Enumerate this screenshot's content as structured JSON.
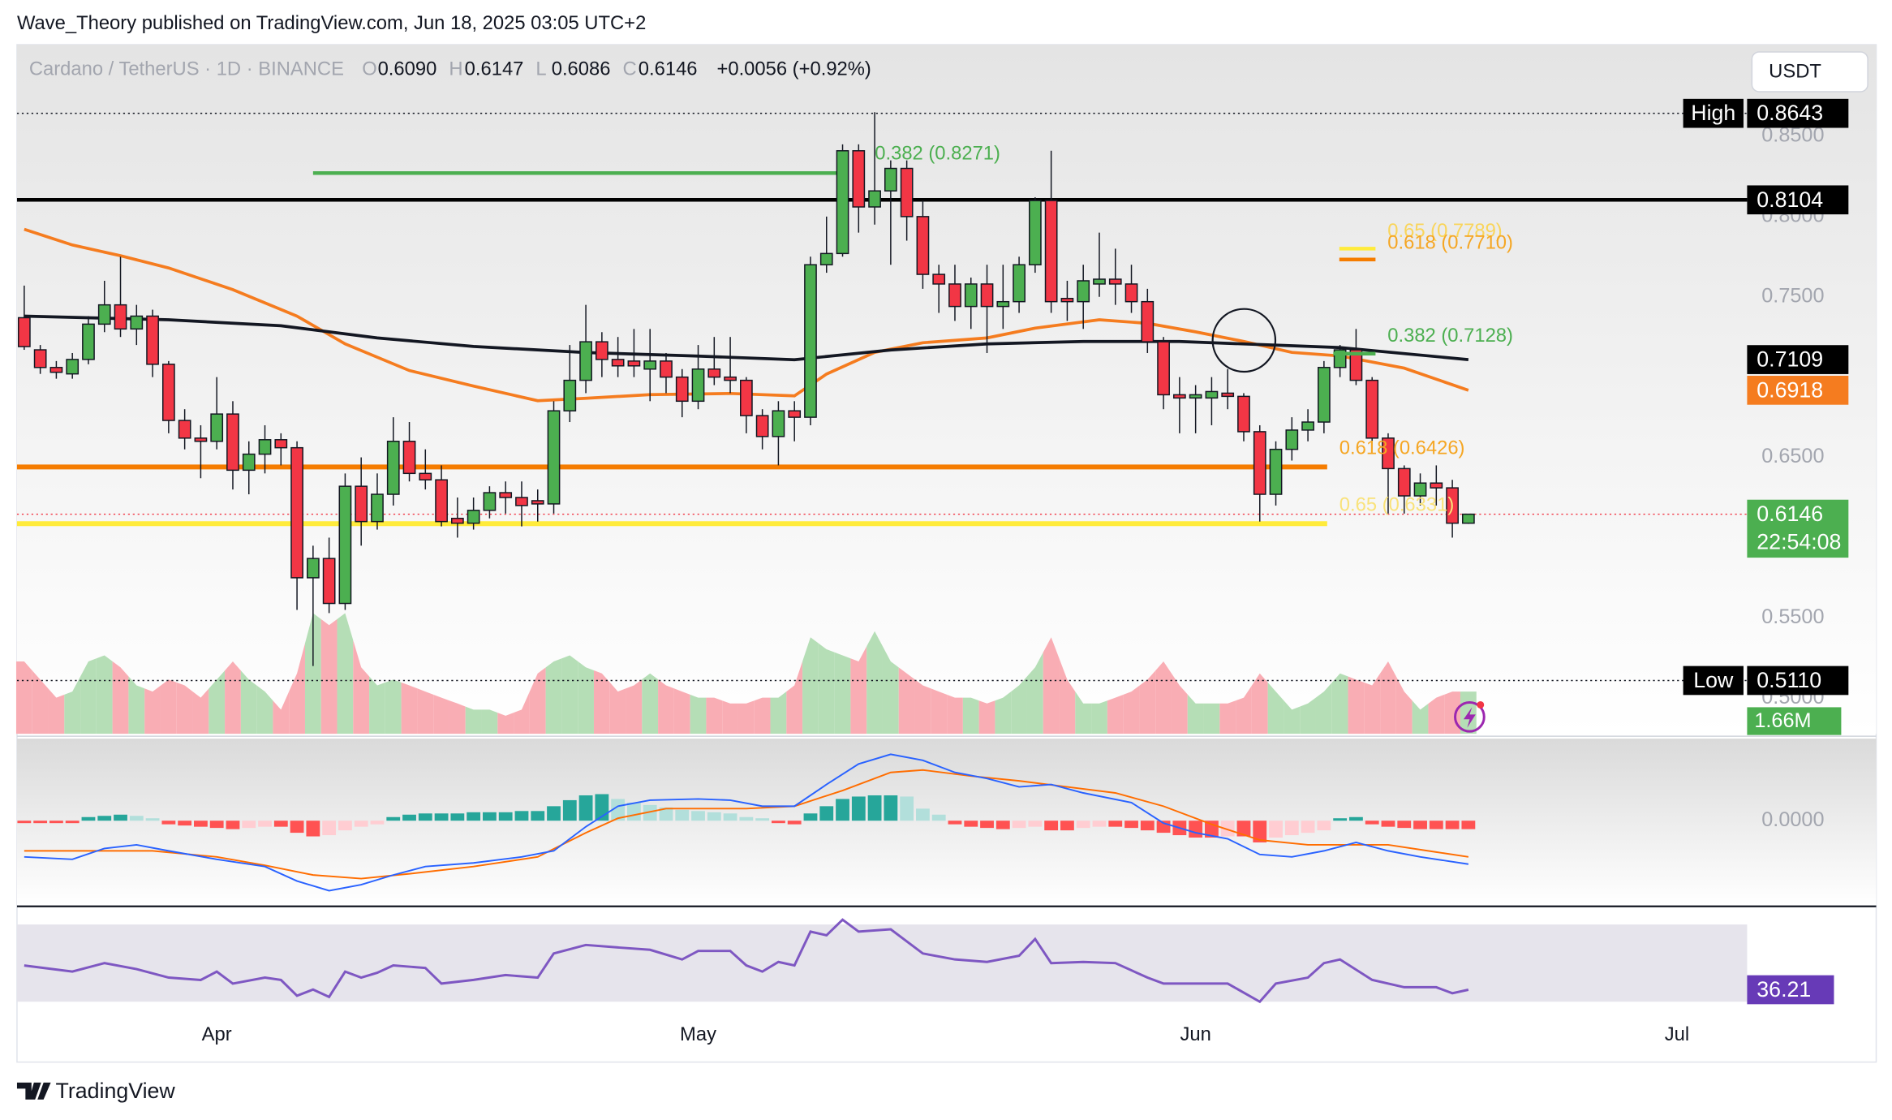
{
  "header": {
    "publisher": "Wave_Theory published on TradingView.com, Jun 18, 2025 03:05 UTC+2"
  },
  "currency_button": "USDT",
  "footer": {
    "brand": "TradingView"
  },
  "chart_data": [
    {
      "type": "candlestick",
      "title": "Cardano / TetherUS · 1D · BINANCE",
      "legend": [
        {
          "key": "O",
          "value": {
            "value": 0.609,
            "label": "0.6090"
          }
        },
        {
          "key": "H",
          "value": 0.6147
        },
        {
          "key": "L",
          "value": 0.6086
        },
        {
          "key": "C",
          "value": 0.6146
        }
      ],
      "change": {
        "value": 0.0056,
        "label": "+0.0056 (+0.92%)"
      },
      "xlim": [
        -0.45,
        107.37
      ],
      "xticks": [
        {
          "value": 12,
          "label": "Apr"
        },
        {
          "value": 42,
          "label": "May"
        },
        {
          "value": 73,
          "label": "Jun"
        },
        {
          "value": 103,
          "label": "Jul"
        }
      ],
      "ylim": [
        0.4778,
        0.9071
      ],
      "yticks": [
        {
          "value": 0.85,
          "label": "0.8500"
        },
        {
          "value": 0.8,
          "label": "0.8000"
        },
        {
          "value": 0.75,
          "label": "0.7500"
        },
        {
          "value": 0.65,
          "label": "0.6500"
        },
        {
          "value": 0.55,
          "label": "0.5500"
        },
        {
          "value": 0.5,
          "label": "0.5000"
        }
      ],
      "up_color": "#4caf50",
      "down_color": "#f23645",
      "open": [
        0.737,
        0.717,
        0.706,
        0.702,
        0.711,
        0.733,
        0.745,
        0.73,
        0.738,
        0.708,
        0.673,
        0.662,
        0.66,
        0.677,
        0.642,
        0.652,
        0.661,
        0.656,
        0.575,
        0.587,
        0.559,
        0.632,
        0.61,
        0.627,
        0.66,
        0.64,
        0.636,
        0.612,
        0.609,
        0.617,
        0.628,
        0.625,
        0.623,
        0.621,
        0.679,
        0.698,
        0.722,
        0.711,
        0.71,
        0.705,
        0.71,
        0.7,
        0.685,
        0.705,
        0.7,
        0.698,
        0.676,
        0.663,
        0.679,
        0.675,
        0.77,
        0.777,
        0.841,
        0.806,
        0.816,
        0.83,
        0.8,
        0.764,
        0.758,
        0.744,
        0.758,
        0.744,
        0.747,
        0.77,
        0.81,
        0.749,
        0.747,
        0.758,
        0.761,
        0.758,
        0.747,
        0.722,
        0.689,
        0.687,
        0.687,
        0.69,
        0.688,
        0.666,
        0.627,
        0.655,
        0.667,
        0.672,
        0.706,
        0.717,
        0.698,
        0.662,
        0.643,
        0.626,
        0.634,
        0.631,
        0.609
      ],
      "high": [
        0.757,
        0.72,
        0.71,
        0.715,
        0.738,
        0.76,
        0.775,
        0.745,
        0.742,
        0.71,
        0.68,
        0.67,
        0.7,
        0.685,
        0.66,
        0.67,
        0.665,
        0.66,
        0.595,
        0.6,
        0.64,
        0.65,
        0.64,
        0.675,
        0.672,
        0.655,
        0.645,
        0.625,
        0.625,
        0.632,
        0.635,
        0.635,
        0.63,
        0.685,
        0.72,
        0.745,
        0.728,
        0.725,
        0.73,
        0.73,
        0.715,
        0.705,
        0.72,
        0.725,
        0.725,
        0.7,
        0.68,
        0.685,
        0.685,
        0.775,
        0.8,
        0.845,
        0.845,
        0.865,
        0.835,
        0.835,
        0.81,
        0.77,
        0.77,
        0.762,
        0.77,
        0.77,
        0.775,
        0.812,
        0.841,
        0.76,
        0.77,
        0.79,
        0.78,
        0.77,
        0.755,
        0.725,
        0.7,
        0.695,
        0.7,
        0.705,
        0.69,
        0.67,
        0.66,
        0.675,
        0.68,
        0.71,
        0.72,
        0.73,
        0.7,
        0.665,
        0.645,
        0.64,
        0.645,
        0.636,
        0.6147
      ],
      "low": [
        0.717,
        0.702,
        0.699,
        0.699,
        0.708,
        0.728,
        0.725,
        0.72,
        0.7,
        0.665,
        0.655,
        0.637,
        0.655,
        0.63,
        0.627,
        0.64,
        0.645,
        0.555,
        0.52,
        0.553,
        0.555,
        0.595,
        0.605,
        0.62,
        0.635,
        0.63,
        0.607,
        0.6,
        0.605,
        0.612,
        0.615,
        0.607,
        0.61,
        0.615,
        0.672,
        0.69,
        0.7,
        0.7,
        0.7,
        0.685,
        0.69,
        0.675,
        0.68,
        0.695,
        0.69,
        0.665,
        0.655,
        0.645,
        0.66,
        0.67,
        0.765,
        0.775,
        0.79,
        0.795,
        0.77,
        0.785,
        0.755,
        0.74,
        0.735,
        0.73,
        0.715,
        0.73,
        0.74,
        0.765,
        0.74,
        0.735,
        0.73,
        0.75,
        0.745,
        0.74,
        0.715,
        0.68,
        0.665,
        0.665,
        0.67,
        0.68,
        0.66,
        0.61,
        0.62,
        0.648,
        0.66,
        0.665,
        0.7,
        0.695,
        0.655,
        0.615,
        0.615,
        0.62,
        0.62,
        0.6,
        0.6086
      ],
      "close": [
        0.719,
        0.706,
        0.703,
        0.711,
        0.733,
        0.745,
        0.73,
        0.738,
        0.708,
        0.673,
        0.662,
        0.66,
        0.677,
        0.642,
        0.652,
        0.661,
        0.656,
        0.575,
        0.587,
        0.559,
        0.632,
        0.61,
        0.627,
        0.66,
        0.64,
        0.636,
        0.61,
        0.609,
        0.617,
        0.628,
        0.625,
        0.62,
        0.621,
        0.679,
        0.698,
        0.722,
        0.711,
        0.707,
        0.707,
        0.71,
        0.7,
        0.685,
        0.705,
        0.7,
        0.698,
        0.676,
        0.663,
        0.679,
        0.675,
        0.77,
        0.777,
        0.841,
        0.806,
        0.816,
        0.83,
        0.8,
        0.764,
        0.758,
        0.744,
        0.758,
        0.744,
        0.747,
        0.77,
        0.81,
        0.747,
        0.747,
        0.76,
        0.761,
        0.758,
        0.747,
        0.722,
        0.689,
        0.687,
        0.689,
        0.691,
        0.688,
        0.666,
        0.627,
        0.655,
        0.667,
        0.672,
        0.706,
        0.717,
        0.698,
        0.662,
        0.643,
        0.626,
        0.634,
        0.631,
        0.609,
        0.6146
      ],
      "moving_averages": [
        {
          "color": "#f57c1f",
          "x": [
            0,
            3,
            6,
            9,
            13,
            17,
            20,
            24,
            28,
            32,
            35,
            39,
            44,
            48,
            50,
            53,
            56,
            60,
            63,
            67,
            70,
            73,
            76,
            79,
            82,
            86,
            90
          ],
          "values": [
            0.7921,
            0.7823,
            0.7756,
            0.768,
            0.7545,
            0.738,
            0.7207,
            0.7041,
            0.6944,
            0.6853,
            0.6868,
            0.6891,
            0.6898,
            0.6883,
            0.7019,
            0.7154,
            0.7214,
            0.7244,
            0.7305,
            0.7357,
            0.7335,
            0.7282,
            0.7222,
            0.7154,
            0.7132,
            0.7056,
            0.6918
          ]
        },
        {
          "color": "#131722",
          "x": [
            0,
            9,
            16,
            22,
            28,
            35,
            42,
            48,
            54,
            60,
            66,
            72,
            78,
            82,
            90
          ],
          "values": [
            0.738,
            0.7357,
            0.732,
            0.7244,
            0.7191,
            0.7153,
            0.7131,
            0.7108,
            0.7169,
            0.7207,
            0.7222,
            0.7222,
            0.7199,
            0.7184,
            0.7109
          ]
        }
      ],
      "levels": [
        {
          "value": 0.8104,
          "color": "#000000",
          "from": -0.45,
          "to": 107.37,
          "width": 3
        },
        {
          "value": 0.8271,
          "color": "#4caf50",
          "from": 18,
          "to": 51.1,
          "width": 3
        },
        {
          "value": 0.644,
          "color": "#f57c00",
          "from": -0.45,
          "to": 81.2,
          "width": 4
        },
        {
          "value": 0.6087,
          "color": "#ffeb3b",
          "from": -0.45,
          "to": 81.2,
          "width": 4
        }
      ],
      "fib_labels": [
        {
          "text": "0.382 (0.8271)",
          "color": "#4caf50"
        },
        {
          "text": "0.65 (0.7789)",
          "color": "#f9d55b"
        },
        {
          "text": "0.618 (0.7710)",
          "color": "#f5a623"
        },
        {
          "text": "0.382 (0.7128)",
          "color": "#4caf50"
        },
        {
          "text": "0.618 (0.6426)",
          "color": "#f5a623"
        },
        {
          "text": "0.65 (0.6331)",
          "color": "#f9e27a"
        }
      ],
      "price_labels": [
        {
          "tag": "High",
          "price": 0.8643,
          "color": "#000000",
          "dotted": "#131722"
        },
        {
          "price": 0.8104,
          "color": "#000000"
        },
        {
          "price": 0.7109,
          "color": "#000000"
        },
        {
          "price": 0.6918,
          "color": "#f57c1f"
        },
        {
          "price": 0.6146,
          "color": "#4caf50",
          "countdown": "22:54:08",
          "dotted": "#f23645"
        },
        {
          "tag": "Low",
          "price": {
            "value": 0.511,
            "label": "0.5110"
          },
          "color": "#000000",
          "dotted": "#131722"
        }
      ]
    },
    {
      "type": "area",
      "up_color": "#b5deb6",
      "down_color": "#f9adb4",
      "ylim": [
        0,
        27.07
      ],
      "last_label": {
        "value": 1.66,
        "label": "1.66M"
      },
      "label_color": "#4caf50",
      "values": [
        2.84,
        2.13,
        1.42,
        1.66,
        2.84,
        3.08,
        2.61,
        1.9,
        1.66,
        2.13,
        1.9,
        1.42,
        2.13,
        2.84,
        2.13,
        1.66,
        0.95,
        2.37,
        4.74,
        4.27,
        4.74,
        2.61,
        1.9,
        2.13,
        1.9,
        1.66,
        1.42,
        1.19,
        0.95,
        0.95,
        0.71,
        0.95,
        2.37,
        2.84,
        3.08,
        2.61,
        2.37,
        1.66,
        1.9,
        2.37,
        1.9,
        1.66,
        1.42,
        1.42,
        1.19,
        1.19,
        1.42,
        1.42,
        1.9,
        3.79,
        3.32,
        3.08,
        2.84,
        4.03,
        2.84,
        2.37,
        1.9,
        1.66,
        1.42,
        1.42,
        1.19,
        1.42,
        1.9,
        2.61,
        3.79,
        2.13,
        1.19,
        1.19,
        1.42,
        1.66,
        2.13,
        2.84,
        1.9,
        1.19,
        1.19,
        1.19,
        1.42,
        2.37,
        1.66,
        0.95,
        1.19,
        1.66,
        2.37,
        2.13,
        1.9,
        2.84,
        1.66,
        0.95,
        1.42,
        1.66,
        1.66
      ]
    },
    {
      "type": "macd",
      "ylim": [
        -0.028,
        0.0272
      ],
      "yticks": [
        {
          "value": 0,
          "label": "0.0000"
        }
      ],
      "histogram_colors": [
        "#26a69a",
        "#b2dfdb",
        "#ff5252",
        "#ffcdd2"
      ],
      "histogram": [
        -0.0008,
        -0.0008,
        -0.0008,
        -0.0008,
        0.0012,
        0.0016,
        0.002,
        0.0016,
        0.0008,
        -0.0012,
        -0.0016,
        -0.002,
        -0.0024,
        -0.0028,
        -0.0024,
        -0.002,
        -0.002,
        -0.004,
        -0.0052,
        -0.0048,
        -0.0032,
        -0.002,
        -0.0012,
        0.0012,
        0.002,
        0.0024,
        0.0024,
        0.0024,
        0.0028,
        0.0028,
        0.0028,
        0.0032,
        0.0032,
        0.0048,
        0.0068,
        0.0084,
        0.0088,
        0.0072,
        0.006,
        0.0052,
        0.0044,
        0.0036,
        0.0032,
        0.0028,
        0.0024,
        0.0012,
        0.0008,
        -0.0008,
        -0.0012,
        0.0024,
        0.0048,
        0.0072,
        0.008,
        0.0084,
        0.0084,
        0.008,
        0.004,
        0.002,
        -0.0012,
        -0.002,
        -0.0024,
        -0.0028,
        -0.0024,
        -0.002,
        -0.0032,
        -0.0032,
        -0.0024,
        -0.002,
        -0.002,
        -0.0024,
        -0.0032,
        -0.004,
        -0.0048,
        -0.0056,
        -0.0056,
        -0.0052,
        -0.0052,
        -0.0072,
        -0.0056,
        -0.0048,
        -0.004,
        -0.0032,
        0.0008,
        0.0012,
        -0.0012,
        -0.002,
        -0.0024,
        -0.0028,
        -0.0028,
        -0.0028,
        -0.0028
      ],
      "macd": {
        "color": "#2962ff",
        "x": [
          0,
          3,
          5,
          7,
          9,
          12,
          15,
          17,
          19,
          21,
          23,
          25,
          28,
          31,
          33,
          35,
          37,
          39,
          42,
          44,
          46,
          48,
          50,
          52,
          54,
          56,
          58,
          60,
          62,
          64,
          66,
          69,
          71,
          73,
          75,
          77,
          79,
          81,
          83,
          85,
          87,
          90
        ],
        "values": [
          -0.012,
          -0.0128,
          -0.0092,
          -0.008,
          -0.01,
          -0.0128,
          -0.0152,
          -0.02,
          -0.0232,
          -0.0212,
          -0.018,
          -0.0152,
          -0.014,
          -0.012,
          -0.01,
          -0.002,
          0.0048,
          0.0068,
          0.0072,
          0.0068,
          0.0048,
          0.0048,
          0.012,
          0.0188,
          0.022,
          0.02,
          0.016,
          0.014,
          0.0112,
          0.012,
          0.0092,
          0.006,
          -0.0008,
          -0.004,
          -0.006,
          -0.0112,
          -0.012,
          -0.01,
          -0.0072,
          -0.01,
          -0.012,
          -0.0144
        ]
      },
      "signal": {
        "color": "#ff6d00",
        "x": [
          0,
          5,
          8,
          12,
          15,
          18,
          21,
          24,
          28,
          32,
          35,
          37,
          40,
          42,
          45,
          48,
          51,
          54,
          56,
          59,
          62,
          65,
          68,
          71,
          74,
          77,
          80,
          82,
          85,
          88,
          90
        ],
        "values": [
          -0.01,
          -0.01,
          -0.01,
          -0.012,
          -0.0148,
          -0.018,
          -0.0192,
          -0.0176,
          -0.0152,
          -0.012,
          -0.004,
          0.0008,
          0.004,
          0.004,
          0.004,
          0.0048,
          0.01,
          0.016,
          0.0168,
          0.0148,
          0.0132,
          0.0112,
          0.0092,
          0.0048,
          -0.0012,
          -0.0064,
          -0.008,
          -0.008,
          -0.008,
          -0.0104,
          -0.012
        ]
      }
    },
    {
      "type": "line",
      "color": "#7e57c2",
      "band": [
        30,
        70
      ],
      "band_color": "#e6e4ec",
      "ylim": [
        18.75,
        78.75
      ],
      "last_label": 36.21,
      "label_color": "#673ab7",
      "x": [
        0,
        3,
        5,
        7,
        9,
        11,
        12,
        13,
        15,
        16,
        17,
        18,
        19,
        20,
        21,
        22,
        23,
        25,
        26,
        28,
        30,
        32,
        33,
        35,
        37,
        39,
        41,
        42,
        44,
        45,
        46,
        47,
        48,
        49,
        50,
        51,
        52,
        54,
        56,
        58,
        60,
        62,
        63,
        64,
        66,
        68,
        70,
        71,
        73,
        75,
        77,
        78,
        80,
        81,
        82,
        84,
        86,
        88,
        89,
        90
      ],
      "values": [
        48.75,
        45.63,
        50,
        46.9,
        42.5,
        41.25,
        45.6,
        39.4,
        42.5,
        41.3,
        33.1,
        36.3,
        32.5,
        45.6,
        42.5,
        45,
        48.8,
        47.5,
        39.4,
        41.3,
        43.8,
        42.5,
        55,
        59.4,
        58.1,
        56.9,
        51.9,
        56.3,
        56.3,
        48.8,
        45.6,
        50.6,
        48.8,
        66.3,
        64.4,
        72.5,
        66.3,
        67.5,
        55,
        51.9,
        50.6,
        53.8,
        62.5,
        50,
        50.6,
        50,
        42.5,
        39.4,
        39.4,
        39.4,
        30,
        39.4,
        42.5,
        50,
        51.9,
        41.3,
        37.5,
        37.5,
        34.4,
        36.21
      ]
    }
  ]
}
